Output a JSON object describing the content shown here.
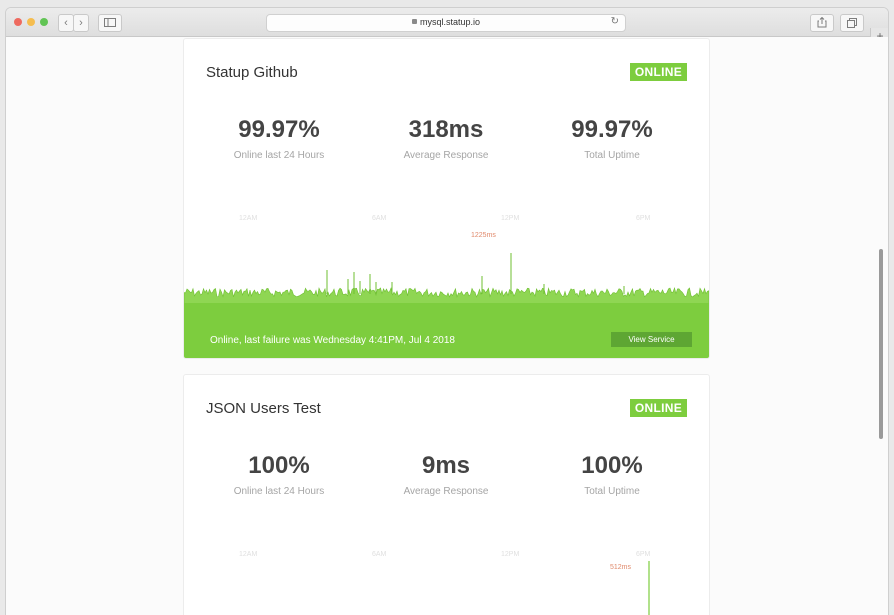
{
  "browser": {
    "url": "mysql.statup.io",
    "back_glyph": "‹",
    "forward_glyph": "›",
    "new_tab_glyph": "+"
  },
  "services": [
    {
      "name": "Statup Github",
      "status": "ONLINE",
      "stats": [
        {
          "value": "99.97%",
          "label": "Online last 24 Hours"
        },
        {
          "value": "318ms",
          "label": "Average Response"
        },
        {
          "value": "99.97%",
          "label": "Total Uptime"
        }
      ],
      "axis_ticks": [
        "12AM",
        "6AM",
        "12PM",
        "6PM"
      ],
      "peak_label": "1225ms",
      "footer_text": "Online, last failure was Wednesday 4:41PM, Jul 4 2018",
      "view_button": "View Service"
    },
    {
      "name": "JSON Users Test",
      "status": "ONLINE",
      "stats": [
        {
          "value": "100%",
          "label": "Online last 24 Hours"
        },
        {
          "value": "9ms",
          "label": "Average Response"
        },
        {
          "value": "100%",
          "label": "Total Uptime"
        }
      ],
      "axis_ticks": [
        "12AM",
        "6AM",
        "12PM",
        "6PM"
      ],
      "peak_label": "512ms"
    }
  ],
  "colors": {
    "online_green": "#7dcd3e",
    "button_green": "#5ea633",
    "peak_orange": "#e0896b"
  }
}
